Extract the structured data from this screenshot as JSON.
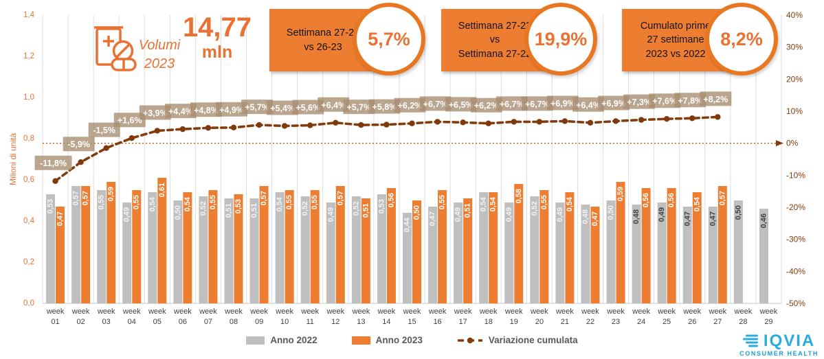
{
  "header": {
    "volume_label_line1": "Volumi",
    "volume_label_line2": "2023",
    "total_value": "14,77",
    "total_unit": "mln",
    "accent_color": "#E97132"
  },
  "callouts": [
    {
      "text": "Settimana 27-23\nvs 26-23",
      "value": "5,7%"
    },
    {
      "text": "Settimana 27-23\nvs\nSettimana 27-22",
      "value": "19,9%"
    },
    {
      "text": "Cumulato prime\n27 settimane\n2023 vs 2022",
      "value": "8,2%"
    }
  ],
  "chart_data": {
    "type": "bar",
    "title": "Volumi 2023 - 14,77 mln",
    "grid": "vertical",
    "legend_position": "bottom",
    "category_prefix": "week",
    "categories": [
      "01",
      "02",
      "03",
      "04",
      "05",
      "06",
      "07",
      "08",
      "09",
      "10",
      "11",
      "12",
      "13",
      "14",
      "15",
      "16",
      "17",
      "18",
      "19",
      "20",
      "21",
      "22",
      "23",
      "24",
      "25",
      "26",
      "27",
      "28",
      "29"
    ],
    "series": [
      {
        "name": "Anno 2022",
        "type": "bar",
        "color": "#BFBFBF",
        "values": [
          0.53,
          0.57,
          0.55,
          0.49,
          0.54,
          0.5,
          0.52,
          0.51,
          0.51,
          0.54,
          0.52,
          0.49,
          0.52,
          0.53,
          0.44,
          0.47,
          0.49,
          0.54,
          0.49,
          0.52,
          0.49,
          0.48,
          0.5,
          0.48,
          0.49,
          0.47,
          0.47,
          0.5,
          0.46
        ],
        "labels": [
          "0,53",
          "0,57",
          "0,55",
          "0,49",
          "0,54",
          "0,50",
          "0,52",
          "0,51",
          "0,51",
          "0,54",
          "0,52",
          "0,49",
          "0,52",
          "0,53",
          "0,44",
          "0,47",
          "0,49",
          "0,54",
          "0,49",
          "0,52",
          "0,49",
          "0,48",
          "0,50",
          "0,48",
          "0,49",
          "0,47",
          "0,47",
          "0,50",
          "0,46"
        ],
        "label_colors": {
          "light": "#F4F4F4",
          "dark": "#404040",
          "dark_from_index": 23
        }
      },
      {
        "name": "Anno 2023",
        "type": "bar",
        "color": "#ED7D31",
        "values": [
          0.47,
          0.57,
          0.59,
          0.55,
          0.61,
          0.54,
          0.55,
          0.53,
          0.57,
          0.55,
          0.55,
          0.57,
          0.51,
          0.56,
          0.5,
          0.55,
          0.51,
          0.54,
          0.58,
          0.55,
          0.54,
          0.47,
          0.59,
          0.56,
          0.56,
          0.54,
          0.57,
          null,
          null
        ],
        "labels": [
          "0,47",
          "0,57",
          "0,59",
          "0,55",
          "0,61",
          "0,54",
          "0,55",
          "0,53",
          "0,57",
          "0,55",
          "0,55",
          "0,57",
          "0,51",
          "0,56",
          "0,50",
          "0,55",
          "0,51",
          "0,54",
          "0,58",
          "0,55",
          "0,54",
          "0,47",
          "0,59",
          "0,56",
          "0,56",
          "0,54",
          "0,57",
          null,
          null
        ],
        "label_color": "#FFFFFF"
      },
      {
        "name": "Variazione cumulata",
        "type": "line",
        "color": "#843C0C",
        "values": [
          -11.8,
          -5.9,
          -1.5,
          1.6,
          3.9,
          4.4,
          4.8,
          4.9,
          5.7,
          5.4,
          5.6,
          6.4,
          5.7,
          5.8,
          6.2,
          6.7,
          6.5,
          6.2,
          6.7,
          6.7,
          6.9,
          6.4,
          6.9,
          7.3,
          7.6,
          7.8,
          8.2,
          null,
          null
        ],
        "labels": [
          "-11,8%",
          "-5,9%",
          "-1,5%",
          "+1,6%",
          "+3,9%",
          "+4,4%",
          "+4,8%",
          "+4,9%",
          "+5,7%",
          "+5,4%",
          "+5,6%",
          "+6,4%",
          "+5,7%",
          "+5,8%",
          "+6,2%",
          "+6,7%",
          "+6,5%",
          "+6,2%",
          "+6,7%",
          "+6,7%",
          "+6,9%",
          "+6,4%",
          "+6,9%",
          "+7,3%",
          "+7,6%",
          "+7,8%",
          "+8,2%",
          null,
          null
        ],
        "label_box_color": "#A98E72",
        "label_text_color": "#FFFFFF"
      }
    ],
    "left_axis": {
      "title": "Milioni di unità",
      "min": 0,
      "max": 1.4,
      "color": "#E97132",
      "ticks": [
        {
          "v": 0,
          "label": "0,0"
        },
        {
          "v": 0.2,
          "label": "0,2"
        },
        {
          "v": 0.4,
          "label": "0,4"
        },
        {
          "v": 0.6,
          "label": "0,6"
        },
        {
          "v": 0.8,
          "label": "0,8"
        },
        {
          "v": 1,
          "label": "1,0"
        },
        {
          "v": 1.2,
          "label": "1,2"
        },
        {
          "v": 1.4,
          "label": "1,4"
        }
      ]
    },
    "right_axis": {
      "min": -50,
      "max": 40,
      "color": "#843C0C",
      "zero_line": true,
      "ticks": [
        {
          "v": 40,
          "label": "40%"
        },
        {
          "v": 30,
          "label": "30%"
        },
        {
          "v": 20,
          "label": "20%"
        },
        {
          "v": 10,
          "label": "10%"
        },
        {
          "v": 0,
          "label": "0%"
        },
        {
          "v": -10,
          "label": "-10%"
        },
        {
          "v": -20,
          "label": "-20%"
        },
        {
          "v": -30,
          "label": "-30%"
        },
        {
          "v": -40,
          "label": "-40%"
        },
        {
          "v": -50,
          "label": "-50%"
        }
      ]
    }
  },
  "legend": {
    "items": [
      {
        "label": "Anno 2022",
        "color": "#BFBFBF",
        "type": "bar"
      },
      {
        "label": "Anno 2023",
        "color": "#ED7D31",
        "type": "bar"
      },
      {
        "label": "Variazione cumulata",
        "color": "#843C0C",
        "type": "line"
      }
    ]
  },
  "logo": {
    "brand": "IQVIA",
    "subtitle": "CONSUMER HEALTH",
    "color": "#29ABE2"
  }
}
